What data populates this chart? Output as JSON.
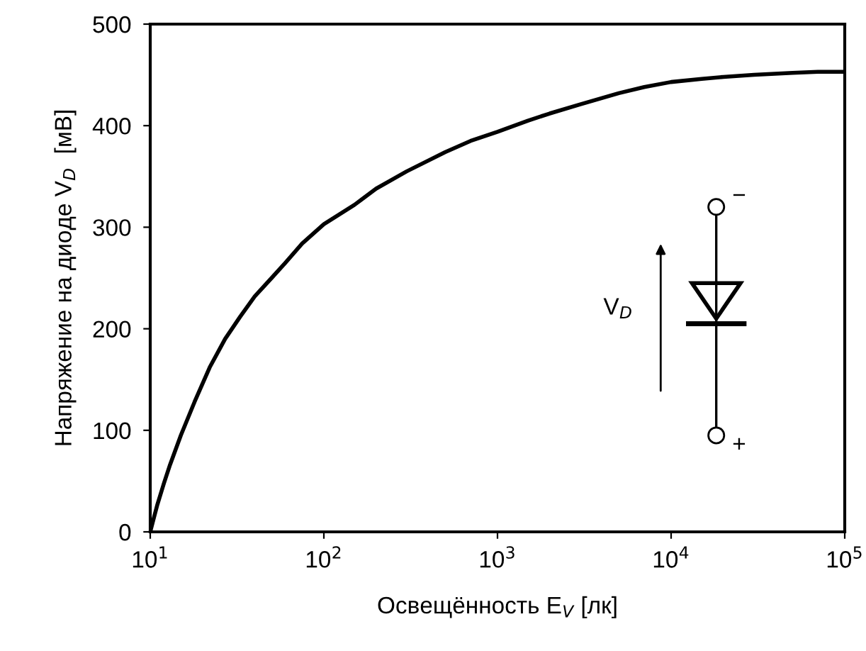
{
  "chart_data": {
    "type": "line",
    "xlabel": "Освещённость E$_{V}$ [лк]",
    "ylabel": "Напряжение на диоде V$_{D}$  [мВ]",
    "log": "x",
    "x": [
      10,
      10.5,
      11,
      12,
      13,
      15,
      18,
      22,
      27,
      33,
      40,
      50,
      60,
      75,
      100,
      150,
      200,
      300,
      500,
      700,
      1000,
      1500,
      2000,
      3000,
      5000,
      7000,
      10000,
      15000,
      20000,
      30000,
      50000,
      70000,
      100000
    ],
    "series": [
      {
        "color": "#000000",
        "values": [
          0,
          14,
          27,
          48,
          66,
          95,
          128,
          162,
          190,
          212,
          232,
          250,
          265,
          284,
          303,
          322,
          338,
          355,
          374,
          385,
          394,
          405,
          412,
          421,
          432,
          438,
          443,
          446,
          448,
          450,
          452,
          453,
          453
        ]
      }
    ],
    "xlim": [
      10,
      100000
    ],
    "xticks": [
      {
        "value": 10,
        "label": "10$^{1}$"
      },
      {
        "value": 100,
        "label": "10$^{2}$"
      },
      {
        "value": 1000,
        "label": "10$^{3}$"
      },
      {
        "value": 10000,
        "label": "10$^{4}$"
      },
      {
        "value": 100000,
        "label": "10$^{5}$"
      }
    ],
    "ylim": [
      0,
      500
    ],
    "yticks": [
      0,
      100,
      200,
      300,
      400,
      500
    ],
    "grid": false,
    "legend": false,
    "annotations": [
      "V$_{D}$",
      "−",
      "+"
    ]
  }
}
